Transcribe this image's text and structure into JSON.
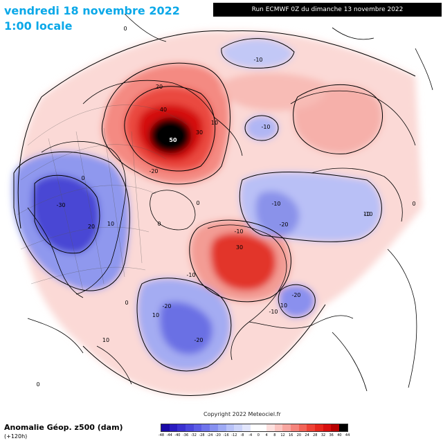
{
  "header": {
    "date": "vendredi 18 novembre 2022",
    "time": "1:00 locale",
    "run": "Run ECMWF 0Z du dimanche 13 novembre 2022"
  },
  "footer": {
    "title": "Anomalie Géop. z500 (dam)",
    "lead": "(+120h)",
    "copyright": "Copyright 2022 Meteociel.fr"
  },
  "colorbar": {
    "labels": [
      "-48",
      "-44",
      "-40",
      "-36",
      "-32",
      "-28",
      "-24",
      "-20",
      "-16",
      "-12",
      "-8",
      "-4",
      "0",
      "4",
      "8",
      "12",
      "16",
      "20",
      "24",
      "28",
      "32",
      "36",
      "40",
      "44"
    ],
    "colors": [
      "#1a0aa8",
      "#2a1cc0",
      "#3a30d0",
      "#4a46dc",
      "#5c5ce6",
      "#6f74ec",
      "#8690f0",
      "#9eaaf4",
      "#b8c2f8",
      "#ccd4fa",
      "#e2e6fc",
      "#ffffff",
      "#ffffff",
      "#fde0de",
      "#fbc4c0",
      "#f8a6a0",
      "#f5847c",
      "#f26458",
      "#ee4236",
      "#e6261c",
      "#d80e0e",
      "#b80000",
      "#000000"
    ]
  },
  "contours": [
    {
      "label": "0"
    },
    {
      "label": "0"
    },
    {
      "label": "0"
    },
    {
      "label": "0"
    },
    {
      "label": "0"
    },
    {
      "label": "0"
    },
    {
      "label": "0"
    },
    {
      "label": "10"
    },
    {
      "label": "10"
    },
    {
      "label": "10"
    },
    {
      "label": "10"
    },
    {
      "label": "10"
    },
    {
      "label": "10"
    },
    {
      "label": "20"
    },
    {
      "label": "20"
    },
    {
      "label": "30"
    },
    {
      "label": "30"
    },
    {
      "label": "40"
    },
    {
      "label": "50"
    },
    {
      "label": "-10"
    },
    {
      "label": "-10"
    },
    {
      "label": "-10"
    },
    {
      "label": "-10"
    },
    {
      "label": "-10"
    },
    {
      "label": "-10"
    },
    {
      "label": "-10"
    },
    {
      "label": "-20"
    },
    {
      "label": "-20"
    },
    {
      "label": "-20"
    },
    {
      "label": "-20"
    },
    {
      "label": "-20"
    },
    {
      "label": "-30"
    }
  ]
}
